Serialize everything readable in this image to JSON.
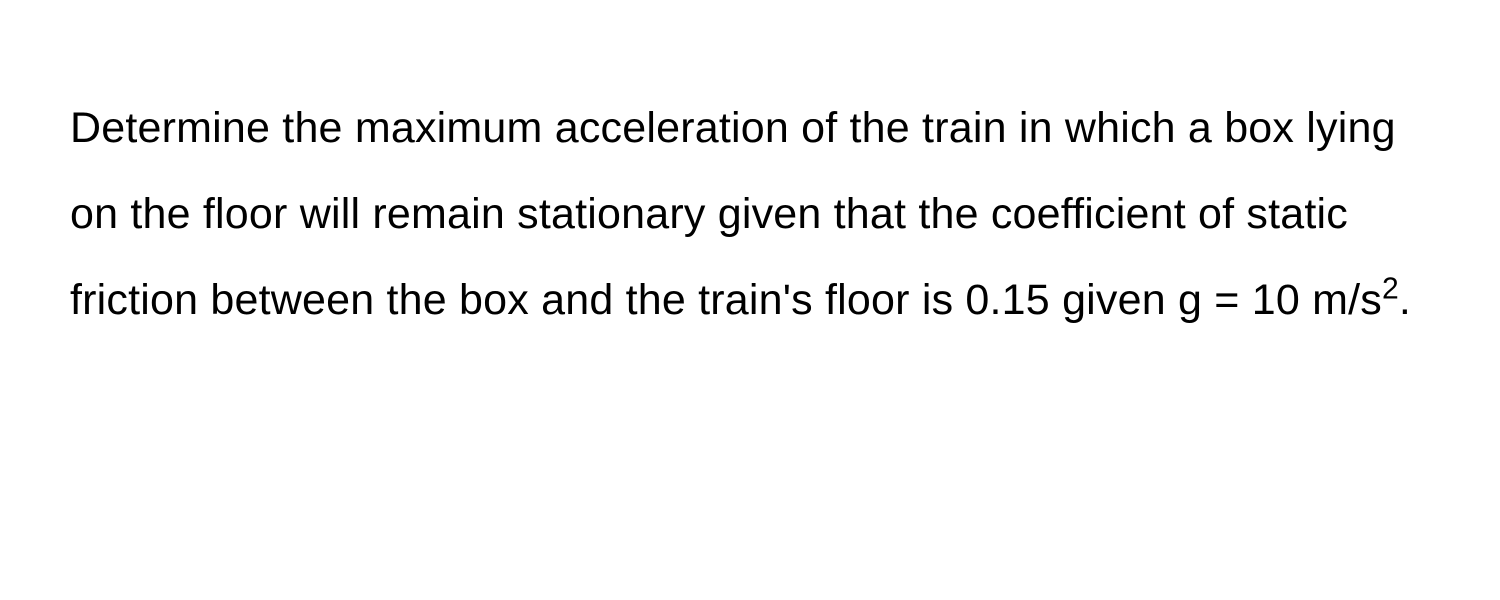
{
  "problem": {
    "text_part1": "Determine the maximum acceleration of the train in which a box lying on the floor will remain stationary given that the coefficient of static friction between the box and the train's floor is 0.15 given g = 10 m/s",
    "superscript": "2",
    "text_part2": ".",
    "font_size": 43,
    "line_height": 2.0,
    "text_color": "#000000",
    "background_color": "#ffffff",
    "coefficient_value": "0.15",
    "gravity_value": "10",
    "gravity_unit": "m/s²"
  }
}
